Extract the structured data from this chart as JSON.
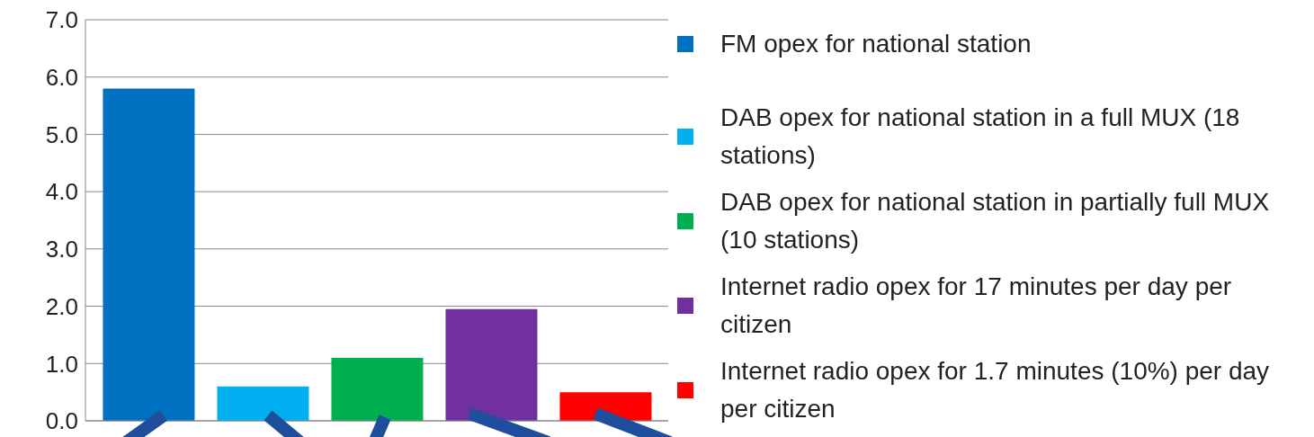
{
  "chart_data": {
    "type": "bar",
    "categories": [
      null
    ],
    "series": [
      {
        "name": "FM opex for national station",
        "color": "#0070c0",
        "values": [
          5.8
        ]
      },
      {
        "name": "DAB opex for national station in a full MUX (18 stations)",
        "color": "#00b0f0",
        "values": [
          0.6
        ]
      },
      {
        "name": "DAB opex for national station in partially full MUX (10 stations)",
        "color": "#00b050",
        "values": [
          1.1
        ]
      },
      {
        "name": "Internet radio opex for 17 minutes per day per citizen",
        "color": "#7030a0",
        "values": [
          1.95
        ]
      },
      {
        "name": "Internet radio opex for 1.7 minutes (10%) per day per citizen",
        "color": "#ff0000",
        "values": [
          0.5
        ]
      }
    ],
    "ylim": [
      0,
      7
    ],
    "yticks": [
      {
        "value": 0,
        "label": "0.0"
      },
      {
        "value": 1,
        "label": "1.0"
      },
      {
        "value": 2,
        "label": "2.0"
      },
      {
        "value": 3,
        "label": "3.0"
      },
      {
        "value": 4,
        "label": "4.0"
      },
      {
        "value": 5,
        "label": "5.0"
      },
      {
        "value": 6,
        "label": "6.0"
      },
      {
        "value": 7,
        "label": "7.0"
      }
    ],
    "grid": "y",
    "legend": "right"
  }
}
